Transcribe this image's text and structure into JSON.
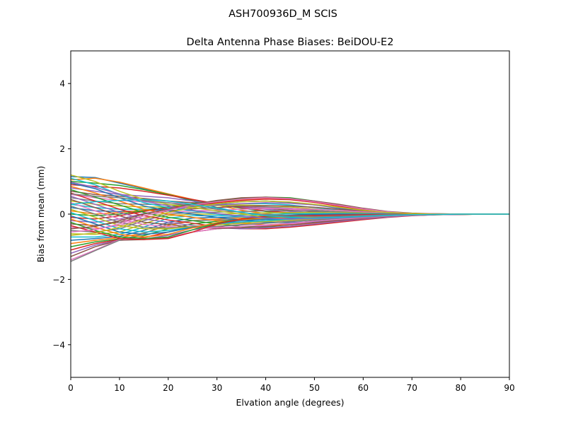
{
  "suptitle": "ASH700936D_M    SCIS",
  "chart_data": {
    "type": "line",
    "title": "Delta Antenna Phase Biases: BeiDOU-E2",
    "xlabel": "Elvation angle (degrees)",
    "ylabel": "Bias from mean (mm)",
    "xlim": [
      0,
      90
    ],
    "ylim": [
      -5,
      5
    ],
    "xticks": [
      0,
      10,
      20,
      30,
      40,
      50,
      60,
      70,
      80,
      90
    ],
    "yticks": [
      -4,
      -2,
      0,
      2,
      4
    ],
    "ytick_labels": [
      "−4",
      "−2",
      "0",
      "2",
      "4"
    ],
    "x": [
      0,
      5,
      10,
      15,
      20,
      25,
      30,
      35,
      40,
      45,
      50,
      55,
      60,
      65,
      70,
      75,
      80,
      85,
      90
    ],
    "grid": false,
    "legend": "none",
    "colors": [
      "#1f77b4",
      "#ff7f0e",
      "#2ca02c",
      "#d62728",
      "#9467bd",
      "#8c564b",
      "#e377c2",
      "#7f7f7f",
      "#bcbd22",
      "#17becf"
    ],
    "series": [
      {
        "values": [
          1.15,
          1.12,
          0.95,
          0.78,
          0.6,
          0.4,
          0.2,
          0.05,
          -0.05,
          -0.1,
          -0.1,
          -0.08,
          -0.05,
          -0.03,
          -0.02,
          -0.01,
          0.0,
          0.0,
          0.0
        ]
      },
      {
        "values": [
          1.05,
          1.1,
          0.98,
          0.8,
          0.62,
          0.45,
          0.28,
          0.12,
          0.02,
          -0.05,
          -0.07,
          -0.06,
          -0.05,
          -0.03,
          -0.02,
          -0.01,
          0.0,
          0.0,
          0.0
        ]
      },
      {
        "values": [
          1.0,
          0.95,
          0.88,
          0.75,
          0.6,
          0.42,
          0.3,
          0.18,
          0.08,
          0.02,
          -0.02,
          -0.03,
          -0.03,
          -0.02,
          -0.01,
          0.0,
          0.0,
          0.0,
          0.0
        ]
      },
      {
        "values": [
          0.9,
          0.85,
          0.8,
          0.7,
          0.58,
          0.45,
          0.32,
          0.2,
          0.1,
          0.04,
          0.0,
          -0.02,
          -0.02,
          -0.02,
          -0.01,
          0.0,
          0.0,
          0.0,
          0.0
        ]
      },
      {
        "values": [
          0.8,
          0.7,
          0.6,
          0.55,
          0.5,
          0.4,
          0.3,
          0.22,
          0.15,
          0.08,
          0.03,
          0.0,
          -0.01,
          -0.01,
          -0.01,
          0.0,
          0.0,
          0.0,
          0.0
        ]
      },
      {
        "values": [
          0.7,
          0.6,
          0.55,
          0.48,
          0.4,
          0.35,
          0.3,
          0.25,
          0.18,
          0.12,
          0.07,
          0.03,
          0.01,
          0.0,
          0.0,
          0.0,
          0.0,
          0.0,
          0.0
        ]
      },
      {
        "values": [
          0.6,
          0.5,
          0.42,
          0.38,
          0.35,
          0.3,
          0.28,
          0.25,
          0.2,
          0.15,
          0.1,
          0.05,
          0.02,
          0.01,
          0.0,
          0.0,
          0.0,
          0.0,
          0.0
        ]
      },
      {
        "values": [
          0.5,
          0.4,
          0.32,
          0.3,
          0.28,
          0.28,
          0.28,
          0.26,
          0.22,
          0.18,
          0.12,
          0.07,
          0.03,
          0.01,
          0.0,
          0.0,
          0.0,
          0.0,
          0.0
        ]
      },
      {
        "values": [
          0.4,
          0.3,
          0.25,
          0.22,
          0.22,
          0.24,
          0.26,
          0.28,
          0.26,
          0.22,
          0.16,
          0.1,
          0.05,
          0.02,
          0.0,
          0.0,
          0.0,
          0.0,
          0.0
        ]
      },
      {
        "values": [
          0.3,
          0.2,
          0.15,
          0.15,
          0.18,
          0.22,
          0.28,
          0.32,
          0.32,
          0.28,
          0.2,
          0.12,
          0.06,
          0.02,
          0.01,
          0.0,
          0.0,
          0.0,
          0.0
        ]
      },
      {
        "values": [
          0.2,
          0.1,
          0.08,
          0.1,
          0.15,
          0.22,
          0.3,
          0.38,
          0.4,
          0.36,
          0.28,
          0.18,
          0.09,
          0.03,
          0.01,
          0.0,
          0.0,
          0.0,
          0.0
        ]
      },
      {
        "values": [
          0.1,
          0.0,
          0.05,
          0.12,
          0.2,
          0.28,
          0.36,
          0.44,
          0.48,
          0.45,
          0.36,
          0.24,
          0.12,
          0.05,
          0.02,
          0.0,
          0.0,
          0.0,
          0.0
        ]
      },
      {
        "values": [
          0.0,
          -0.05,
          0.0,
          0.1,
          0.22,
          0.32,
          0.4,
          0.48,
          0.52,
          0.5,
          0.4,
          0.28,
          0.15,
          0.06,
          0.02,
          0.01,
          0.0,
          0.0,
          0.0
        ]
      },
      {
        "values": [
          -0.1,
          -0.15,
          -0.05,
          0.08,
          0.2,
          0.28,
          0.35,
          0.42,
          0.46,
          0.44,
          0.36,
          0.25,
          0.14,
          0.06,
          0.02,
          0.0,
          0.0,
          0.0,
          0.0
        ]
      },
      {
        "values": [
          -0.2,
          -0.25,
          -0.15,
          0.02,
          0.15,
          0.22,
          0.28,
          0.32,
          0.35,
          0.33,
          0.28,
          0.2,
          0.11,
          0.05,
          0.02,
          0.0,
          0.0,
          0.0,
          0.0
        ]
      },
      {
        "values": [
          -0.3,
          -0.35,
          -0.25,
          -0.05,
          0.1,
          0.16,
          0.2,
          0.24,
          0.26,
          0.25,
          0.21,
          0.15,
          0.09,
          0.04,
          0.01,
          0.0,
          0.0,
          0.0,
          0.0
        ]
      },
      {
        "values": [
          -0.4,
          -0.45,
          -0.35,
          -0.12,
          0.05,
          0.1,
          0.12,
          0.15,
          0.17,
          0.17,
          0.15,
          0.11,
          0.07,
          0.03,
          0.01,
          0.0,
          0.0,
          0.0,
          0.0
        ]
      },
      {
        "values": [
          -0.5,
          -0.55,
          -0.45,
          -0.2,
          0.0,
          0.05,
          0.06,
          0.08,
          0.1,
          0.1,
          0.09,
          0.07,
          0.04,
          0.02,
          0.01,
          0.0,
          0.0,
          0.0,
          0.0
        ]
      },
      {
        "values": [
          -0.6,
          -0.62,
          -0.55,
          -0.3,
          -0.05,
          0.0,
          0.0,
          0.02,
          0.04,
          0.05,
          0.05,
          0.04,
          0.03,
          0.01,
          0.0,
          0.0,
          0.0,
          0.0,
          0.0
        ]
      },
      {
        "values": [
          -0.7,
          -0.7,
          -0.62,
          -0.4,
          -0.12,
          -0.05,
          -0.05,
          -0.03,
          -0.01,
          0.01,
          0.02,
          0.02,
          0.01,
          0.01,
          0.0,
          0.0,
          0.0,
          0.0,
          0.0
        ]
      },
      {
        "values": [
          -0.8,
          -0.75,
          -0.68,
          -0.5,
          -0.25,
          -0.12,
          -0.1,
          -0.08,
          -0.05,
          -0.03,
          -0.01,
          0.0,
          0.0,
          0.0,
          0.0,
          0.0,
          0.0,
          0.0,
          0.0
        ]
      },
      {
        "values": [
          -0.9,
          -0.8,
          -0.72,
          -0.58,
          -0.35,
          -0.2,
          -0.15,
          -0.12,
          -0.1,
          -0.07,
          -0.05,
          -0.03,
          -0.02,
          -0.01,
          0.0,
          0.0,
          0.0,
          0.0,
          0.0
        ]
      },
      {
        "values": [
          -1.0,
          -0.85,
          -0.76,
          -0.66,
          -0.45,
          -0.3,
          -0.22,
          -0.18,
          -0.15,
          -0.12,
          -0.09,
          -0.06,
          -0.04,
          -0.02,
          -0.01,
          0.0,
          0.0,
          0.0,
          0.0
        ]
      },
      {
        "values": [
          -1.1,
          -0.9,
          -0.78,
          -0.72,
          -0.55,
          -0.38,
          -0.3,
          -0.25,
          -0.2,
          -0.16,
          -0.12,
          -0.09,
          -0.06,
          -0.03,
          -0.01,
          0.0,
          0.0,
          0.0,
          0.0
        ]
      },
      {
        "values": [
          -1.2,
          -0.95,
          -0.8,
          -0.76,
          -0.65,
          -0.48,
          -0.38,
          -0.32,
          -0.27,
          -0.22,
          -0.17,
          -0.12,
          -0.08,
          -0.04,
          -0.02,
          -0.01,
          0.0,
          0.0,
          0.0
        ]
      },
      {
        "values": [
          -1.3,
          -1.0,
          -0.8,
          -0.78,
          -0.72,
          -0.55,
          -0.45,
          -0.4,
          -0.34,
          -0.28,
          -0.21,
          -0.15,
          -0.1,
          -0.05,
          -0.02,
          -0.01,
          0.0,
          0.0,
          0.0
        ]
      },
      {
        "values": [
          -1.4,
          -1.1,
          -0.78,
          -0.75,
          -0.7,
          -0.55,
          -0.45,
          -0.4,
          -0.36,
          -0.3,
          -0.23,
          -0.17,
          -0.11,
          -0.06,
          -0.03,
          -0.01,
          0.0,
          0.0,
          0.0
        ]
      },
      {
        "values": [
          -1.45,
          -1.12,
          -0.8,
          -0.6,
          -0.3,
          -0.2,
          -0.18,
          -0.16,
          -0.14,
          -0.12,
          -0.1,
          -0.08,
          -0.05,
          -0.03,
          -0.01,
          0.0,
          0.0,
          0.0,
          0.0
        ]
      },
      {
        "values": [
          1.2,
          1.0,
          0.7,
          0.45,
          0.3,
          0.2,
          0.1,
          0.0,
          -0.08,
          -0.12,
          -0.13,
          -0.1,
          -0.07,
          -0.04,
          -0.02,
          -0.01,
          0.0,
          0.0,
          0.0
        ]
      },
      {
        "values": [
          1.1,
          0.9,
          0.6,
          0.35,
          0.2,
          0.1,
          0.0,
          -0.08,
          -0.15,
          -0.18,
          -0.17,
          -0.14,
          -0.1,
          -0.05,
          -0.02,
          -0.01,
          0.0,
          0.0,
          0.0
        ]
      },
      {
        "values": [
          0.95,
          0.78,
          0.5,
          0.25,
          0.1,
          0.0,
          -0.1,
          -0.18,
          -0.25,
          -0.26,
          -0.23,
          -0.18,
          -0.12,
          -0.07,
          -0.03,
          -0.01,
          0.0,
          0.0,
          0.0
        ]
      },
      {
        "values": [
          0.85,
          0.65,
          0.4,
          0.15,
          0.0,
          -0.1,
          -0.2,
          -0.28,
          -0.33,
          -0.33,
          -0.28,
          -0.21,
          -0.14,
          -0.08,
          -0.04,
          -0.02,
          -0.01,
          0.0,
          0.0
        ]
      },
      {
        "values": [
          0.75,
          0.52,
          0.28,
          0.05,
          -0.1,
          -0.2,
          -0.3,
          -0.38,
          -0.4,
          -0.38,
          -0.32,
          -0.24,
          -0.16,
          -0.09,
          -0.04,
          -0.02,
          -0.01,
          0.0,
          0.0
        ]
      },
      {
        "values": [
          0.65,
          0.4,
          0.15,
          -0.05,
          -0.18,
          -0.28,
          -0.38,
          -0.45,
          -0.45,
          -0.4,
          -0.33,
          -0.25,
          -0.17,
          -0.1,
          -0.05,
          -0.02,
          -0.01,
          0.0,
          0.0
        ]
      },
      {
        "values": [
          0.55,
          0.3,
          0.05,
          -0.15,
          -0.25,
          -0.35,
          -0.42,
          -0.45,
          -0.42,
          -0.37,
          -0.3,
          -0.22,
          -0.15,
          -0.09,
          -0.04,
          -0.02,
          -0.01,
          0.0,
          0.0
        ]
      },
      {
        "values": [
          0.45,
          0.2,
          -0.05,
          -0.25,
          -0.32,
          -0.4,
          -0.44,
          -0.42,
          -0.38,
          -0.33,
          -0.26,
          -0.19,
          -0.13,
          -0.07,
          -0.03,
          -0.01,
          0.0,
          0.0,
          0.0
        ]
      },
      {
        "values": [
          0.35,
          0.1,
          -0.15,
          -0.32,
          -0.38,
          -0.42,
          -0.42,
          -0.38,
          -0.33,
          -0.28,
          -0.22,
          -0.16,
          -0.11,
          -0.06,
          -0.03,
          -0.01,
          0.0,
          0.0,
          0.0
        ]
      },
      {
        "values": [
          0.25,
          0.0,
          -0.25,
          -0.4,
          -0.42,
          -0.4,
          -0.38,
          -0.33,
          -0.28,
          -0.23,
          -0.18,
          -0.13,
          -0.09,
          -0.05,
          -0.02,
          -0.01,
          0.0,
          0.0,
          0.0
        ]
      },
      {
        "values": [
          0.15,
          -0.1,
          -0.35,
          -0.45,
          -0.45,
          -0.38,
          -0.33,
          -0.28,
          -0.23,
          -0.19,
          -0.15,
          -0.11,
          -0.07,
          -0.04,
          -0.02,
          -0.01,
          0.0,
          0.0,
          0.0
        ]
      },
      {
        "values": [
          0.05,
          -0.2,
          -0.45,
          -0.55,
          -0.5,
          -0.4,
          -0.3,
          -0.24,
          -0.2,
          -0.16,
          -0.12,
          -0.09,
          -0.06,
          -0.03,
          -0.01,
          0.0,
          0.0,
          0.0,
          0.0
        ]
      },
      {
        "values": [
          -0.05,
          -0.3,
          -0.55,
          -0.62,
          -0.55,
          -0.4,
          -0.28,
          -0.2,
          -0.16,
          -0.13,
          -0.1,
          -0.07,
          -0.05,
          -0.03,
          -0.01,
          0.0,
          0.0,
          0.0,
          0.0
        ]
      },
      {
        "values": [
          -0.15,
          -0.4,
          -0.62,
          -0.7,
          -0.62,
          -0.42,
          -0.26,
          -0.17,
          -0.12,
          -0.1,
          -0.08,
          -0.06,
          -0.04,
          -0.02,
          -0.01,
          0.0,
          0.0,
          0.0,
          0.0
        ]
      },
      {
        "values": [
          -0.25,
          -0.5,
          -0.7,
          -0.75,
          -0.7,
          -0.48,
          -0.28,
          -0.15,
          -0.09,
          -0.07,
          -0.06,
          -0.04,
          -0.03,
          -0.02,
          -0.01,
          0.0,
          0.0,
          0.0,
          0.0
        ]
      },
      {
        "values": [
          -0.35,
          -0.55,
          -0.75,
          -0.78,
          -0.75,
          -0.55,
          -0.3,
          -0.15,
          -0.07,
          -0.05,
          -0.04,
          -0.03,
          -0.02,
          -0.01,
          0.0,
          0.0,
          0.0,
          0.0,
          0.0
        ]
      },
      {
        "values": [
          0.98,
          0.82,
          0.62,
          0.4,
          0.25,
          0.12,
          0.02,
          -0.06,
          -0.12,
          -0.15,
          -0.14,
          -0.12,
          -0.08,
          -0.04,
          -0.02,
          -0.01,
          0.0,
          0.0,
          0.0
        ]
      },
      {
        "values": [
          -0.45,
          -0.38,
          -0.2,
          0.0,
          0.15,
          0.3,
          0.42,
          0.5,
          0.52,
          0.48,
          0.4,
          0.3,
          0.18,
          0.08,
          0.03,
          0.01,
          0.0,
          0.0,
          0.0
        ]
      },
      {
        "values": [
          -0.55,
          -0.48,
          -0.3,
          -0.05,
          0.12,
          0.28,
          0.38,
          0.46,
          0.5,
          0.47,
          0.38,
          0.27,
          0.16,
          0.07,
          0.02,
          0.01,
          0.0,
          0.0,
          0.0
        ]
      },
      {
        "values": [
          0.62,
          0.55,
          0.5,
          0.42,
          0.35,
          0.25,
          0.15,
          0.05,
          -0.02,
          -0.06,
          -0.07,
          -0.06,
          -0.04,
          -0.02,
          -0.01,
          0.0,
          0.0,
          0.0,
          0.0
        ]
      },
      {
        "values": [
          -0.65,
          -0.58,
          -0.4,
          -0.15,
          0.05,
          0.2,
          0.32,
          0.38,
          0.4,
          0.37,
          0.3,
          0.21,
          0.12,
          0.05,
          0.02,
          0.0,
          0.0,
          0.0,
          0.0
        ]
      },
      {
        "values": [
          0.3,
          0.38,
          0.42,
          0.45,
          0.4,
          0.3,
          0.18,
          0.06,
          -0.05,
          -0.1,
          -0.12,
          -0.1,
          -0.07,
          -0.04,
          -0.02,
          -0.01,
          0.0,
          0.0,
          0.0
        ]
      }
    ]
  }
}
